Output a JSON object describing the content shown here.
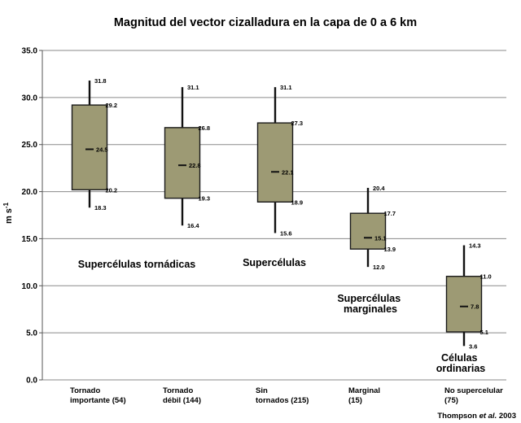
{
  "chart_data": {
    "type": "box",
    "title": "Magnitud del vector cizalladura en la capa de 0 a 6 km",
    "ylabel": "m s",
    "ylabel_exponent": "-1",
    "ylim": [
      0,
      35
    ],
    "yticks": [
      "0.0",
      "5.0",
      "10.0",
      "15.0",
      "20.0",
      "25.0",
      "30.0",
      "35.0"
    ],
    "grid": true,
    "box_color": "#9d9a74",
    "categories": [
      {
        "line1": "Tornado",
        "line2": "importante (54)",
        "min": 18.3,
        "q1": 20.2,
        "median": 24.5,
        "q3": 29.2,
        "max": 31.8,
        "labels": {
          "max": "31.8",
          "q3": "29.2",
          "median": "24.5",
          "q1": "20.2",
          "min": "18.3"
        }
      },
      {
        "line1": "Tornado",
        "line2": "débil (144)",
        "min": 16.4,
        "q1": 19.3,
        "median": 22.8,
        "q3": 26.8,
        "max": 31.1,
        "labels": {
          "max": "31.1",
          "q3": "26.8",
          "median": "22.8",
          "q1": "19.3",
          "min": "16.4"
        }
      },
      {
        "line1": "Sin",
        "line2": "tornados (215)",
        "min": 15.6,
        "q1": 18.9,
        "median": 22.1,
        "q3": 27.3,
        "max": 31.1,
        "labels": {
          "max": "31.1",
          "q3": "27.3",
          "median": "22.1",
          "q1": "18.9",
          "min": "15.6"
        }
      },
      {
        "line1": "Marginal",
        "line2": "(15)",
        "min": 12.0,
        "q1": 13.9,
        "median": 15.1,
        "q3": 17.7,
        "max": 20.4,
        "labels": {
          "max": "20.4",
          "q3": "17.7",
          "median": "15.1",
          "q1": "13.9",
          "min": "12.0"
        }
      },
      {
        "line1": "No supercelular",
        "line2": "(75)",
        "min": 3.6,
        "q1": 5.1,
        "median": 7.8,
        "q3": 11.0,
        "max": 14.3,
        "labels": {
          "max": "14.3",
          "q3": "11.0",
          "median": "7.8",
          "q1": "5.1",
          "min": "3.6"
        }
      }
    ],
    "annotations": [
      {
        "lines": [
          "Supercélulas tornádicas"
        ]
      },
      {
        "lines": [
          "Supercélulas"
        ]
      },
      {
        "lines": [
          "Supercélulas",
          "marginales"
        ]
      },
      {
        "lines": [
          "Células",
          "ordinarias"
        ]
      }
    ],
    "credit": {
      "pre": "Thompson ",
      "italic": "et al.",
      "post": " 2003"
    }
  }
}
